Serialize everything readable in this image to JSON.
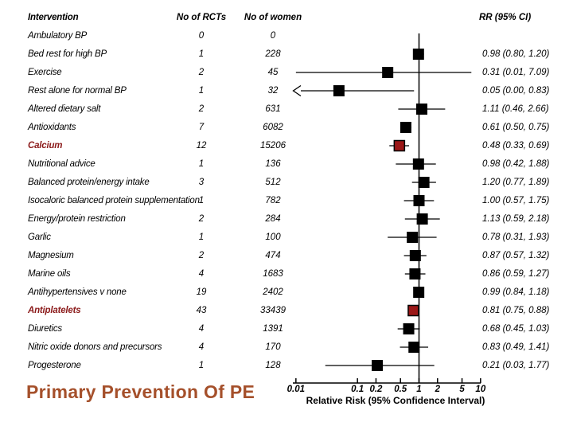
{
  "table": {
    "headers": {
      "intervention": "Intervention",
      "rcts": "No of RCTs",
      "women": "No of women",
      "rr": "RR (95% CI)"
    },
    "rows": [
      {
        "intervention": "Ambulatory BP",
        "rcts": "0",
        "women": "0",
        "rr_ci": "",
        "highlight": false
      },
      {
        "intervention": "Bed rest for high BP",
        "rcts": "1",
        "women": "228",
        "rr_ci": "0.98 (0.80, 1.20)",
        "highlight": false
      },
      {
        "intervention": "Exercise",
        "rcts": "2",
        "women": "45",
        "rr_ci": "0.31 (0.01, 7.09)",
        "highlight": false
      },
      {
        "intervention": "Rest alone for normal BP",
        "rcts": "1",
        "women": "32",
        "rr_ci": "0.05 (0.00, 0.83)",
        "highlight": false
      },
      {
        "intervention": "Altered dietary salt",
        "rcts": "2",
        "women": "631",
        "rr_ci": "1.11 (0.46, 2.66)",
        "highlight": false
      },
      {
        "intervention": "Antioxidants",
        "rcts": "7",
        "women": "6082",
        "rr_ci": "0.61 (0.50, 0.75)",
        "highlight": false
      },
      {
        "intervention": "Calcium",
        "rcts": "12",
        "women": "15206",
        "rr_ci": "0.48 (0.33, 0.69)",
        "highlight": true
      },
      {
        "intervention": "Nutritional advice",
        "rcts": "1",
        "women": "136",
        "rr_ci": "0.98 (0.42, 1.88)",
        "highlight": false
      },
      {
        "intervention": "Balanced protein/energy intake",
        "rcts": "3",
        "women": "512",
        "rr_ci": "1.20 (0.77, 1.89)",
        "highlight": false
      },
      {
        "intervention": "Isocaloric balanced protein supplementation",
        "rcts": "1",
        "women": "782",
        "rr_ci": "1.00 (0.57, 1.75)",
        "highlight": false
      },
      {
        "intervention": "Energy/protein restriction",
        "rcts": "2",
        "women": "284",
        "rr_ci": "1.13 (0.59, 2.18)",
        "highlight": false
      },
      {
        "intervention": "Garlic",
        "rcts": "1",
        "women": "100",
        "rr_ci": "0.78 (0.31, 1.93)",
        "highlight": false
      },
      {
        "intervention": "Magnesium",
        "rcts": "2",
        "women": "474",
        "rr_ci": "0.87 (0.57, 1.32)",
        "highlight": false
      },
      {
        "intervention": "Marine oils",
        "rcts": "4",
        "women": "1683",
        "rr_ci": "0.86 (0.59, 1.27)",
        "highlight": false
      },
      {
        "intervention": "Antihypertensives v none",
        "rcts": "19",
        "women": "2402",
        "rr_ci": "0.99 (0.84, 1.18)",
        "highlight": false
      },
      {
        "intervention": "Antiplatelets",
        "rcts": "43",
        "women": "33439",
        "rr_ci": "0.81 (0.75, 0.88)",
        "highlight": true
      },
      {
        "intervention": "Diuretics",
        "rcts": "4",
        "women": "1391",
        "rr_ci": "0.68 (0.45, 1.03)",
        "highlight": false
      },
      {
        "intervention": "Nitric oxide donors and precursors",
        "rcts": "4",
        "women": "170",
        "rr_ci": "0.83 (0.49, 1.41)",
        "highlight": false
      },
      {
        "intervention": "Progesterone",
        "rcts": "1",
        "women": "128",
        "rr_ci": "0.21 (0.03, 1.77)",
        "highlight": false
      }
    ]
  },
  "footer_title": "Primary Prevention Of PE",
  "chart_data": {
    "type": "scatter",
    "variant": "forest-plot",
    "title": "Primary Prevention Of PE",
    "xlabel": "Relative Risk (95% Confidence Interval)",
    "xscale": "log",
    "xlim": [
      0.01,
      10
    ],
    "x_ticks": [
      0.01,
      0.1,
      0.2,
      0.5,
      1,
      2,
      5,
      10
    ],
    "x_tick_labels": [
      "0.01",
      "0.1",
      "0.2",
      "0.5",
      "1",
      "2",
      "5",
      "10"
    ],
    "reference_line": 1,
    "grid": false,
    "points": [
      {
        "label": "Ambulatory BP",
        "rr": null,
        "ci_low": null,
        "ci_high": null
      },
      {
        "label": "Bed rest for high BP",
        "rr": 0.98,
        "ci_low": 0.8,
        "ci_high": 1.2
      },
      {
        "label": "Exercise",
        "rr": 0.31,
        "ci_low": 0.01,
        "ci_high": 7.09
      },
      {
        "label": "Rest alone for normal BP",
        "rr": 0.05,
        "ci_low": 0.0,
        "ci_high": 0.83,
        "clipped_low": true
      },
      {
        "label": "Altered dietary salt",
        "rr": 1.11,
        "ci_low": 0.46,
        "ci_high": 2.66
      },
      {
        "label": "Antioxidants",
        "rr": 0.61,
        "ci_low": 0.5,
        "ci_high": 0.75
      },
      {
        "label": "Calcium",
        "rr": 0.48,
        "ci_low": 0.33,
        "ci_high": 0.69
      },
      {
        "label": "Nutritional advice",
        "rr": 0.98,
        "ci_low": 0.42,
        "ci_high": 1.88
      },
      {
        "label": "Balanced protein/energy intake",
        "rr": 1.2,
        "ci_low": 0.77,
        "ci_high": 1.89
      },
      {
        "label": "Isocaloric balanced protein supplementation",
        "rr": 1.0,
        "ci_low": 0.57,
        "ci_high": 1.75
      },
      {
        "label": "Energy/protein restriction",
        "rr": 1.13,
        "ci_low": 0.59,
        "ci_high": 2.18
      },
      {
        "label": "Garlic",
        "rr": 0.78,
        "ci_low": 0.31,
        "ci_high": 1.93
      },
      {
        "label": "Magnesium",
        "rr": 0.87,
        "ci_low": 0.57,
        "ci_high": 1.32
      },
      {
        "label": "Marine oils",
        "rr": 0.86,
        "ci_low": 0.59,
        "ci_high": 1.27
      },
      {
        "label": "Antihypertensives v none",
        "rr": 0.99,
        "ci_low": 0.84,
        "ci_high": 1.18
      },
      {
        "label": "Antiplatelets",
        "rr": 0.81,
        "ci_low": 0.75,
        "ci_high": 0.88
      },
      {
        "label": "Diuretics",
        "rr": 0.68,
        "ci_low": 0.45,
        "ci_high": 1.03
      },
      {
        "label": "Nitric oxide donors and precursors",
        "rr": 0.83,
        "ci_low": 0.49,
        "ci_high": 1.41
      },
      {
        "label": "Progesterone",
        "rr": 0.21,
        "ci_low": 0.03,
        "ci_high": 1.77
      }
    ],
    "highlighted_labels": [
      "Calcium",
      "Antiplatelets"
    ],
    "legend": null
  },
  "colors": {
    "text": "#000000",
    "highlight_text": "#8B1A1A",
    "highlight_square": "#9B1717",
    "square": "#000000",
    "line": "#000000",
    "title": "#A5502B",
    "background": "#FFFFFF"
  }
}
